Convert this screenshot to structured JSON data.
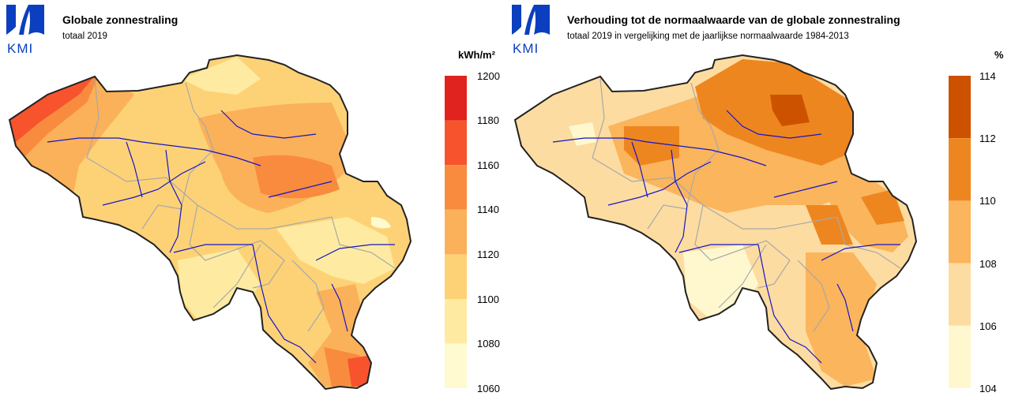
{
  "logo": {
    "text": "KMI",
    "color": "#0b3fbf"
  },
  "left_map": {
    "title": "Globale zonnestraling",
    "subtitle": "totaal 2019",
    "unit": "kWh/m²",
    "legend": {
      "ticks": [
        "1200",
        "1180",
        "1160",
        "1140",
        "1120",
        "1100",
        "1080",
        "1060"
      ],
      "colors": [
        "#e0231f",
        "#f7542e",
        "#f98b3f",
        "#fbb159",
        "#fdd276",
        "#feeba1",
        "#fffad0"
      ]
    }
  },
  "right_map": {
    "title": "Verhouding tot de normaalwaarde van de globale zonnestraling",
    "subtitle": "totaal 2019 in vergelijking met de jaarlijkse normaalwaarde 1984-2013",
    "unit": "%",
    "legend": {
      "ticks": [
        "114",
        "112",
        "110",
        "108",
        "106",
        "104"
      ],
      "colors": [
        "#cc5200",
        "#ee8620",
        "#fbb55c",
        "#fddca1",
        "#fff8cf"
      ]
    }
  }
}
